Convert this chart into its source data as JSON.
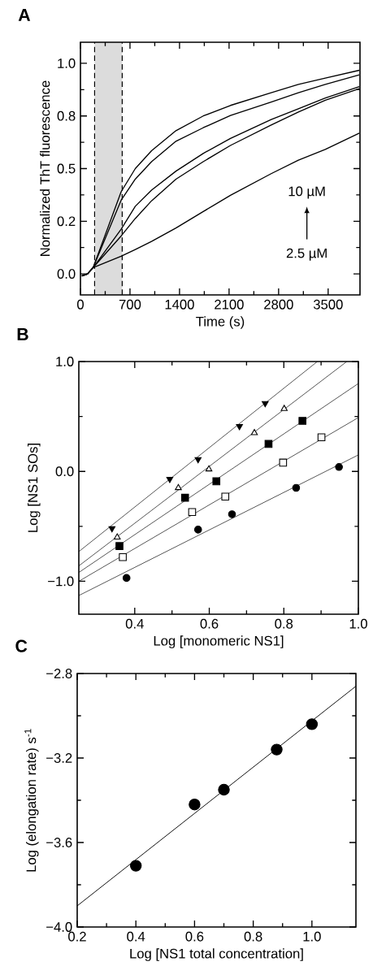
{
  "chart_data": [
    {
      "type": "line",
      "title": "A",
      "xlabel": "Time (s)",
      "ylabel": "Normalized ThT fluorescence",
      "xlim": [
        0,
        3950
      ],
      "ylim": [
        -0.1,
        1.1
      ],
      "xticks": [
        0,
        700,
        1400,
        2100,
        2800,
        3500
      ],
      "yticks": [
        {
          "value": 0,
          "label": "0.0"
        },
        {
          "value": 0.25,
          "label": "0.2"
        },
        {
          "value": 0.5,
          "label": "0.5"
        },
        {
          "value": 0.75,
          "label": "0.8"
        },
        {
          "value": 1,
          "label": "1.0"
        }
      ],
      "marker": "none",
      "line_style": "solid",
      "bands": [
        {
          "axis": "x",
          "from": 200,
          "to": 590,
          "color": "#dcdcdc"
        }
      ],
      "ref_lines": [
        {
          "axis": "x",
          "value": 200,
          "line_style": "dashed"
        },
        {
          "axis": "x",
          "value": 590,
          "line_style": "dashed"
        }
      ],
      "annotations": [
        "10 µM",
        "2.5 µM"
      ],
      "series": [
        {
          "color": "#000000",
          "x": [
            20,
            100,
            180,
            575,
            775,
            1005,
            1350,
            1735,
            2120,
            2695,
            3080,
            3460,
            3940
          ],
          "values": [
            -0.01,
            0.0,
            0.03,
            0.39,
            0.5,
            0.585,
            0.68,
            0.75,
            0.8,
            0.86,
            0.9,
            0.93,
            0.967
          ]
        },
        {
          "color": "#000000",
          "x": [
            20,
            100,
            180,
            575,
            775,
            1005,
            1350,
            1735,
            2120,
            2695,
            3080,
            3460,
            3940
          ],
          "values": [
            -0.01,
            0.0,
            0.03,
            0.35,
            0.45,
            0.533,
            0.63,
            0.694,
            0.752,
            0.816,
            0.86,
            0.9,
            0.945
          ]
        },
        {
          "color": "#000000",
          "x": [
            20,
            100,
            180,
            575,
            775,
            1005,
            1350,
            1735,
            2120,
            2695,
            3080,
            3460,
            3940
          ],
          "values": [
            -0.01,
            0.0,
            0.03,
            0.212,
            0.321,
            0.398,
            0.488,
            0.572,
            0.643,
            0.733,
            0.784,
            0.835,
            0.889
          ]
        },
        {
          "color": "#000000",
          "x": [
            20,
            100,
            180,
            575,
            775,
            1005,
            1350,
            1735,
            2120,
            2695,
            3080,
            3460,
            3940
          ],
          "values": [
            -0.01,
            0.0,
            0.03,
            0.18,
            0.263,
            0.347,
            0.45,
            0.533,
            0.61,
            0.707,
            0.769,
            0.825,
            0.88
          ]
        },
        {
          "color": "#000000",
          "x": [
            20,
            100,
            180,
            575,
            775,
            1005,
            1350,
            1735,
            2120,
            2695,
            3080,
            3460,
            3940
          ],
          "values": [
            -0.01,
            0.0,
            0.03,
            0.084,
            0.116,
            0.154,
            0.218,
            0.296,
            0.373,
            0.476,
            0.54,
            0.591,
            0.668
          ]
        }
      ]
    },
    {
      "type": "scatter",
      "title": "B",
      "xlabel": "Log [monomeric NS1]",
      "ylabel": "Log [NS1 SOs]",
      "xlim": [
        0.25,
        1.0
      ],
      "ylim": [
        -1.3,
        1.0
      ],
      "xticks": [
        {
          "value": 0.4,
          "label": "0.4"
        },
        {
          "value": 0.6,
          "label": "0.6"
        },
        {
          "value": 0.8,
          "label": "0.8"
        },
        {
          "value": 1.0,
          "label": "1.0"
        }
      ],
      "yticks": [
        {
          "value": -1,
          "label": "−1.0"
        },
        {
          "value": 0,
          "label": "0.0"
        },
        {
          "value": 1,
          "label": "1.0"
        }
      ],
      "series": [
        {
          "color": "#000000",
          "marker": "triangle",
          "x": [
            0.339,
            0.494,
            0.57,
            0.681,
            0.75
          ],
          "values": [
            -0.52,
            -0.07,
            0.11,
            0.41,
            0.62
          ]
        },
        {
          "color": "#000000",
          "marker": "triangle",
          "x": [
            0.353,
            0.517,
            0.599,
            0.721,
            0.801
          ],
          "values": [
            -0.6,
            -0.15,
            0.02,
            0.35,
            0.57
          ]
        },
        {
          "color": "#000000",
          "marker": "square",
          "x": [
            0.359,
            0.535,
            0.619,
            0.759,
            0.85
          ],
          "values": [
            -0.68,
            -0.24,
            -0.09,
            0.25,
            0.46
          ]
        },
        {
          "color": "#000000",
          "marker": "square",
          "x": [
            0.368,
            0.554,
            0.643,
            0.798,
            0.901
          ],
          "values": [
            -0.78,
            -0.37,
            -0.23,
            0.08,
            0.31
          ]
        },
        {
          "color": "#000000",
          "marker": "circle",
          "x": [
            0.378,
            0.57,
            0.661,
            0.833,
            0.948
          ],
          "values": [
            -0.97,
            -0.53,
            -0.39,
            -0.15,
            0.04
          ]
        },
        {
          "type": "line",
          "color": "#000000",
          "x": [
            0.25,
            0.89
          ],
          "values": [
            -0.73,
            1.0
          ]
        },
        {
          "type": "line",
          "color": "#000000",
          "x": [
            0.25,
            0.969
          ],
          "values": [
            -0.86,
            1.0
          ]
        },
        {
          "type": "line",
          "color": "#000000",
          "x": [
            0.25,
            1.0
          ],
          "values": [
            -0.92,
            0.8
          ]
        },
        {
          "type": "line",
          "color": "#000000",
          "x": [
            0.25,
            1.0
          ],
          "values": [
            -1.0,
            0.49
          ]
        },
        {
          "type": "line",
          "color": "#000000",
          "x": [
            0.25,
            1.0
          ],
          "values": [
            -1.13,
            0.15
          ]
        }
      ]
    },
    {
      "type": "scatter",
      "title": "C",
      "xlabel": "Log [NS1 total concentration]",
      "ylabel": "Log (elongation rate) s$^{-1}$",
      "xlim": [
        0.2,
        1.15
      ],
      "ylim": [
        -4.0,
        -2.8
      ],
      "xticks": [
        {
          "value": 0.2,
          "label": "0.2"
        },
        {
          "value": 0.4,
          "label": "0.4"
        },
        {
          "value": 0.6,
          "label": "0.6"
        },
        {
          "value": 0.8,
          "label": "0.8"
        },
        {
          "value": 1.0,
          "label": "1.0"
        }
      ],
      "yticks": [
        {
          "value": -4.0,
          "label": "−4.0"
        },
        {
          "value": -3.6,
          "label": "−3.6"
        },
        {
          "value": -3.2,
          "label": "−3.2"
        },
        {
          "value": -2.8,
          "label": "−2.8"
        }
      ],
      "series": [
        {
          "color": "#000000",
          "marker": "circle",
          "x": [
            0.4,
            0.6,
            0.7,
            0.88,
            1.0
          ],
          "values": [
            -3.71,
            -3.42,
            -3.35,
            -3.16,
            -3.04
          ]
        },
        {
          "type": "line",
          "color": "#000000",
          "x": [
            0.2,
            1.15
          ],
          "values": [
            -3.9,
            -2.86
          ]
        }
      ]
    }
  ]
}
